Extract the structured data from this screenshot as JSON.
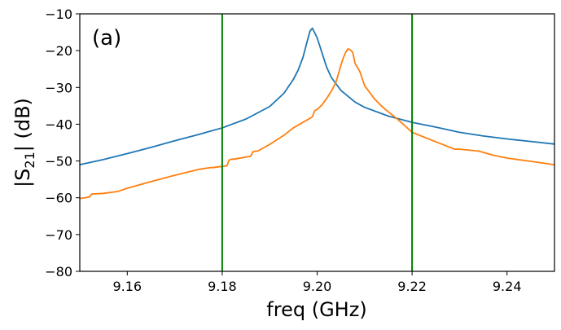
{
  "chart_data": {
    "type": "line",
    "panel_label": "(a)",
    "xlabel": "freq (GHz)",
    "ylabel": {
      "prefix": "|S",
      "subscript": "21",
      "suffix": "| (dB)"
    },
    "xlim": [
      9.15,
      9.25
    ],
    "ylim": [
      -80,
      -10
    ],
    "xticks": [
      9.16,
      9.18,
      9.2,
      9.22,
      9.24
    ],
    "xtick_labels": [
      "9.16",
      "9.18",
      "9.20",
      "9.22",
      "9.24"
    ],
    "yticks": [
      -80,
      -70,
      -60,
      -50,
      -40,
      -30,
      -20,
      -10
    ],
    "ytick_labels": [
      "−80",
      "−70",
      "−60",
      "−50",
      "−40",
      "−30",
      "−20",
      "−10"
    ],
    "grid": false,
    "vlines": [
      {
        "x": 9.18,
        "color": "#008000"
      },
      {
        "x": 9.22,
        "color": "#008000"
      }
    ],
    "series": [
      {
        "name": "blue",
        "color": "#1f77b4",
        "x": [
          9.15,
          9.155,
          9.16,
          9.165,
          9.17,
          9.175,
          9.18,
          9.185,
          9.19,
          9.193,
          9.195,
          9.196,
          9.197,
          9.198,
          9.1985,
          9.199,
          9.2,
          9.201,
          9.202,
          9.203,
          9.205,
          9.208,
          9.21,
          9.215,
          9.22,
          9.225,
          9.23,
          9.235,
          9.24,
          9.245,
          9.25
        ],
        "y": [
          -51.0,
          -49.6,
          -48.0,
          -46.3,
          -44.5,
          -42.8,
          -41.0,
          -38.6,
          -35.2,
          -31.6,
          -27.8,
          -25.3,
          -21.9,
          -17.0,
          -14.7,
          -13.9,
          -16.5,
          -20.5,
          -24.5,
          -27.3,
          -30.8,
          -34.0,
          -35.4,
          -37.8,
          -39.5,
          -40.8,
          -42.2,
          -43.2,
          -44.0,
          -44.7,
          -45.4
        ]
      },
      {
        "name": "orange",
        "color": "#ff7f0e",
        "x": [
          9.15,
          9.151,
          9.152,
          9.1525,
          9.155,
          9.158,
          9.16,
          9.165,
          9.17,
          9.175,
          9.1775,
          9.178,
          9.181,
          9.1815,
          9.182,
          9.1825,
          9.186,
          9.1865,
          9.187,
          9.1875,
          9.19,
          9.193,
          9.195,
          9.197,
          9.199,
          9.1995,
          9.2,
          9.201,
          9.202,
          9.203,
          9.204,
          9.205,
          9.2055,
          9.206,
          9.2065,
          9.207,
          9.2075,
          9.208,
          9.209,
          9.21,
          9.212,
          9.214,
          9.217,
          9.22,
          9.225,
          9.229,
          9.23,
          9.234,
          9.237,
          9.24,
          9.245,
          9.25
        ],
        "y": [
          -60.2,
          -60.0,
          -59.8,
          -59.0,
          -58.8,
          -58.3,
          -57.4,
          -55.6,
          -53.9,
          -52.3,
          -51.8,
          -51.8,
          -51.3,
          -49.7,
          -49.5,
          -49.5,
          -48.7,
          -47.5,
          -47.3,
          -47.3,
          -45.5,
          -43.0,
          -41.0,
          -39.5,
          -38.0,
          -36.3,
          -36.0,
          -34.8,
          -33.0,
          -31.0,
          -28.5,
          -24.0,
          -22.0,
          -20.5,
          -19.5,
          -19.8,
          -20.5,
          -23.5,
          -25.7,
          -29.5,
          -33.0,
          -35.6,
          -38.7,
          -42.2,
          -44.8,
          -46.8,
          -46.8,
          -47.3,
          -48.4,
          -49.2,
          -50.1,
          -51.0
        ]
      }
    ]
  }
}
